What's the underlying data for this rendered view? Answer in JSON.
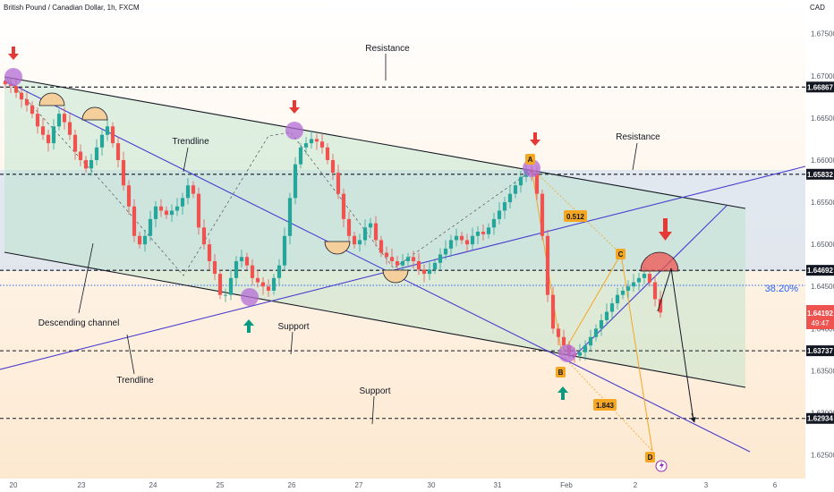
{
  "header": {
    "title": "British Pound / Canadian Dollar, 1h, FXCM"
  },
  "colors": {
    "up": "#26a69a",
    "down": "#ef5350",
    "channel": "#131722",
    "trendline": "#3f3fbf",
    "arrow_down": "#e53935",
    "arrow_up": "#089981",
    "circle_purple": "#b36bd6",
    "fib_line": "#f5a623",
    "fib_blue": "#2962ff"
  },
  "chart_data": {
    "type": "candlestick",
    "title": "British Pound / Canadian Dollar, 1h, FXCM",
    "currency": "CAD",
    "x_ticks": [
      "20",
      "23",
      "24",
      "25",
      "26",
      "27",
      "30",
      "31",
      "Feb",
      "2",
      "3",
      "6"
    ],
    "y_ticks": [
      "1.67500",
      "1.67000",
      "1.66500",
      "1.66000",
      "1.65500",
      "1.65000",
      "1.64500",
      "1.64000",
      "1.63500",
      "1.63000",
      "1.62500"
    ],
    "ylim": [
      1.6222,
      1.679
    ],
    "price_levels": [
      {
        "value": 1.66867,
        "label": "1.66867"
      },
      {
        "value": 1.65832,
        "label": "1.65832"
      },
      {
        "value": 1.64692,
        "label": "1.64692"
      },
      {
        "value": 1.63737,
        "label": "1.63737"
      },
      {
        "value": 1.62934,
        "label": "1.62934"
      }
    ],
    "current_price": {
      "value": 1.64192,
      "label": "1.64192",
      "countdown": "49:47"
    },
    "fib_level": {
      "label": "38.20%",
      "value": 1.6455
    },
    "annotations": {
      "resistance_1": "Resistance",
      "resistance_2": "Resistance",
      "trendline_1": "Trendline",
      "trendline_2": "Trendline",
      "descending_channel": "Descending channel",
      "support_1": "Support",
      "support_2": "Support"
    },
    "pattern_points": {
      "A": "A",
      "B": "B",
      "C": "C",
      "D": "D"
    },
    "fib_ratios": {
      "bc": "0.512",
      "cd": "1.843"
    },
    "price_path": [
      1.669,
      1.6688,
      1.668,
      1.6672,
      1.6665,
      1.6655,
      1.664,
      1.663,
      1.662,
      1.664,
      1.6655,
      1.6645,
      1.663,
      1.661,
      1.66,
      1.659,
      1.66,
      1.6615,
      1.663,
      1.664,
      1.662,
      1.66,
      1.657,
      1.6545,
      1.651,
      1.65,
      1.651,
      1.653,
      1.6545,
      1.654,
      1.6535,
      1.654,
      1.6545,
      1.6555,
      1.657,
      1.656,
      1.652,
      1.65,
      1.648,
      1.6465,
      1.644,
      1.644,
      1.646,
      1.648,
      1.6485,
      1.6475,
      1.646,
      1.6455,
      1.645,
      1.6445,
      1.646,
      1.6475,
      1.651,
      1.6555,
      1.6595,
      1.6615,
      1.662,
      1.6625,
      1.6622,
      1.6615,
      1.66,
      1.6585,
      1.656,
      1.653,
      1.651,
      1.65,
      1.6505,
      1.652,
      1.6525,
      1.6505,
      1.649,
      1.6485,
      1.648,
      1.6475,
      1.648,
      1.6485,
      1.648,
      1.647,
      1.6465,
      1.647,
      1.6478,
      1.6488,
      1.6495,
      1.6505,
      1.651,
      1.6505,
      1.65,
      1.651,
      1.6515,
      1.6512,
      1.652,
      1.653,
      1.654,
      1.655,
      1.656,
      1.657,
      1.658,
      1.6588,
      1.6585,
      1.656,
      1.651,
      1.644,
      1.64,
      1.639,
      1.638,
      1.637,
      1.6368,
      1.6372,
      1.638,
      1.639,
      1.64,
      1.641,
      1.642,
      1.643,
      1.644,
      1.6445,
      1.645,
      1.6455,
      1.646,
      1.6465,
      1.6455,
      1.6435,
      1.6419
    ]
  }
}
